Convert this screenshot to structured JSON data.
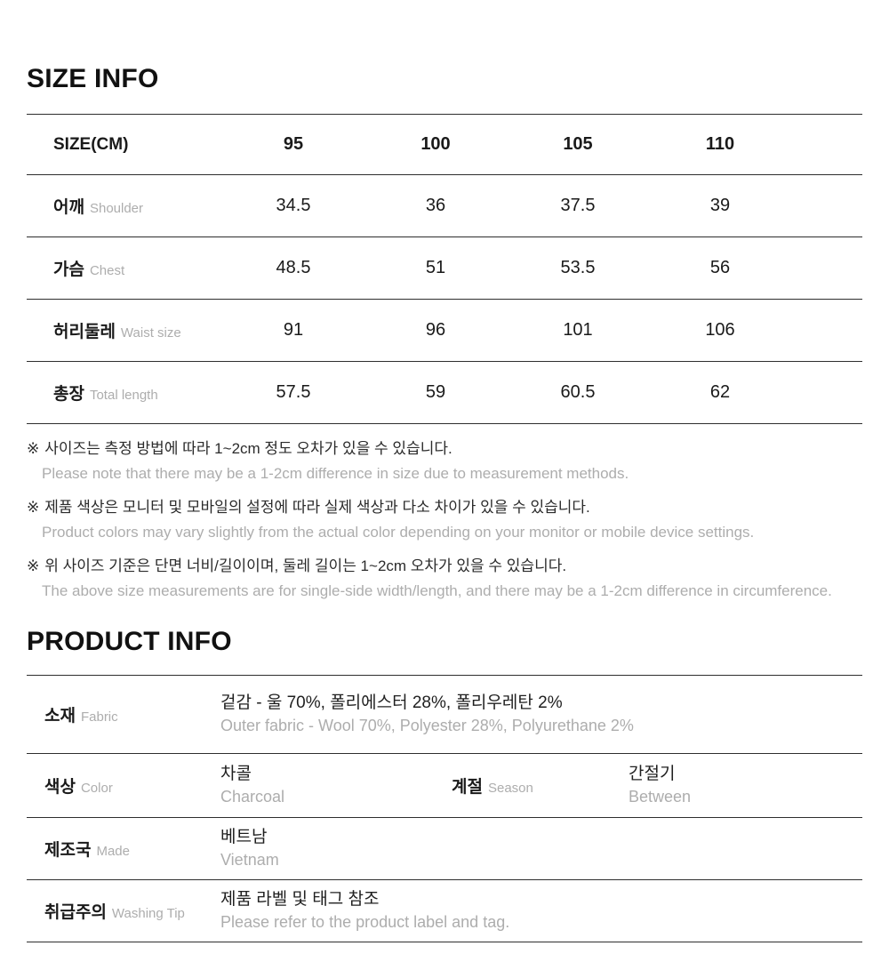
{
  "page": {
    "background": "#ffffff",
    "text_color": "#1a1a1a",
    "muted_color": "#adadad",
    "line_color": "#2e2e2e"
  },
  "size_info": {
    "title": "SIZE INFO",
    "table": {
      "header": {
        "label": "SIZE(CM)",
        "sizes": [
          "95",
          "100",
          "105",
          "110"
        ]
      },
      "rows": [
        {
          "label_ko": "어깨",
          "label_en": "Shoulder",
          "values": [
            "34.5",
            "36",
            "37.5",
            "39"
          ]
        },
        {
          "label_ko": "가슴",
          "label_en": "Chest",
          "values": [
            "48.5",
            "51",
            "53.5",
            "56"
          ]
        },
        {
          "label_ko": "허리둘레",
          "label_en": "Waist size",
          "values": [
            "91",
            "96",
            "101",
            "106"
          ]
        },
        {
          "label_ko": "총장",
          "label_en": "Total length",
          "values": [
            "57.5",
            "59",
            "60.5",
            "62"
          ]
        }
      ]
    },
    "notes": [
      {
        "marker": "※",
        "ko": "사이즈는 측정 방법에 따라 1~2cm 정도 오차가 있을 수 있습니다.",
        "en": "Please note that there may be a 1-2cm difference in size due to measurement methods."
      },
      {
        "marker": "※",
        "ko": "제품 색상은 모니터 및 모바일의 설정에 따라 실제 색상과 다소 차이가 있을 수 있습니다.",
        "en": "Product colors may vary slightly from the actual color depending on your monitor or mobile device settings."
      },
      {
        "marker": "※",
        "ko": "위 사이즈 기준은 단면 너비/길이이며, 둘레 길이는 1~2cm 오차가 있을 수 있습니다.",
        "en": "The above size measurements are for single-side width/length, and there may be a 1-2cm difference in circumference."
      }
    ]
  },
  "product_info": {
    "title": "PRODUCT INFO",
    "fabric": {
      "label_ko": "소재",
      "label_en": "Fabric",
      "value_ko": "겉감 - 울 70%, 폴리에스터 28%, 폴리우레탄 2%",
      "value_en": "Outer fabric - Wool 70%, Polyester 28%, Polyurethane 2%"
    },
    "color": {
      "label_ko": "색상",
      "label_en": "Color",
      "value_ko": "차콜",
      "value_en": "Charcoal"
    },
    "season": {
      "label_ko": "계절",
      "label_en": "Season",
      "value_ko": "간절기",
      "value_en": "Between"
    },
    "made": {
      "label_ko": "제조국",
      "label_en": "Made",
      "value_ko": "베트남",
      "value_en": "Vietnam"
    },
    "washing": {
      "label_ko": "취급주의",
      "label_en": "Washing Tip",
      "value_ko": "제품 라벨 및 태그 참조",
      "value_en": "Please refer to the product label and tag."
    }
  }
}
